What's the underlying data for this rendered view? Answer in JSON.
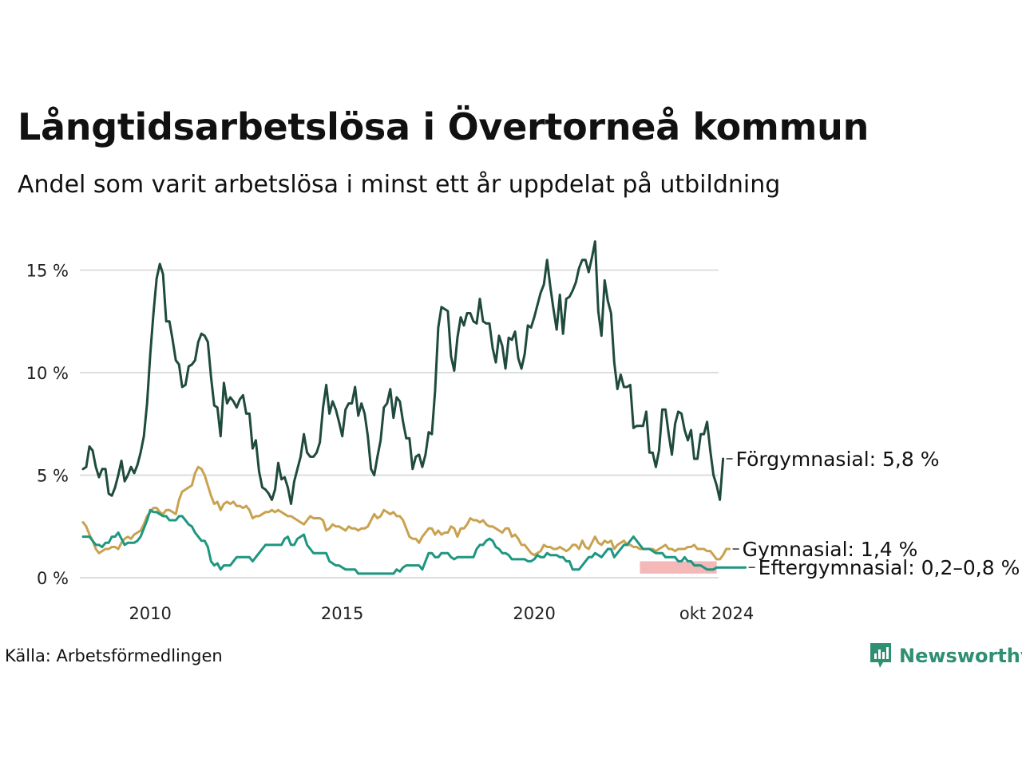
{
  "header": {
    "title": "Långtidsarbetslösa i Övertorneå kommun",
    "subtitle": "Andel som varit arbetslösa i minst ett år uppdelat på utbildning"
  },
  "footer": {
    "source": "Källa: Arbetsförmedlingen",
    "brand": "Newsworthy"
  },
  "colors": {
    "forgymnasial": "#1f4a3e",
    "gymnasial": "#c9a24f",
    "eftergymnasial": "#1e9680",
    "range_band": "#f5b8b8",
    "grid": "#dddddd"
  },
  "chart_data": {
    "type": "line",
    "x_start": 2008.25,
    "x_step": 0.0833333,
    "xlim": [
      2008.25,
      2024.8
    ],
    "ylim": [
      0,
      16.5
    ],
    "y_ticks": [
      {
        "value": 0,
        "label": "0 %"
      },
      {
        "value": 5,
        "label": "5 %"
      },
      {
        "value": 10,
        "label": "10 %"
      },
      {
        "value": 15,
        "label": "15 %"
      }
    ],
    "x_ticks": [
      {
        "value": 2010,
        "label": "2010"
      },
      {
        "value": 2015,
        "label": "2015"
      },
      {
        "value": 2020,
        "label": "2020"
      },
      {
        "value": 2024.75,
        "label": "okt 2024"
      }
    ],
    "series": [
      {
        "key": "forgymnasial",
        "name": "Förgymnasial",
        "end_label": "Förgymnasial: 5,8 %",
        "label_y": 5.8,
        "values": [
          5.3,
          5.4,
          6.4,
          6.2,
          5.4,
          4.9,
          5.3,
          5.3,
          4.1,
          4.0,
          4.4,
          5.0,
          5.7,
          4.7,
          5.0,
          5.4,
          5.1,
          5.5,
          6.1,
          6.9,
          8.5,
          10.9,
          12.9,
          14.6,
          15.3,
          14.8,
          12.5,
          12.5,
          11.6,
          10.6,
          10.4,
          9.3,
          9.4,
          10.3,
          10.4,
          10.6,
          11.5,
          11.9,
          11.8,
          11.5,
          9.8,
          8.4,
          8.3,
          6.9,
          9.5,
          8.5,
          8.8,
          8.6,
          8.3,
          8.7,
          8.9,
          8.0,
          8.0,
          6.3,
          6.7,
          5.2,
          4.4,
          4.3,
          4.1,
          3.8,
          4.3,
          5.6,
          4.8,
          4.9,
          4.4,
          3.6,
          4.7,
          5.3,
          5.9,
          7.0,
          6.1,
          5.9,
          5.9,
          6.1,
          6.6,
          8.3,
          9.4,
          8.0,
          8.6,
          8.2,
          7.6,
          6.9,
          8.2,
          8.5,
          8.5,
          9.3,
          7.9,
          8.5,
          8.0,
          6.9,
          5.3,
          5.0,
          5.9,
          6.7,
          8.3,
          8.5,
          9.2,
          7.8,
          8.8,
          8.6,
          7.6,
          6.8,
          6.8,
          5.3,
          5.9,
          6.0,
          5.4,
          6.0,
          7.1,
          7.0,
          9.1,
          12.2,
          13.2,
          13.1,
          13.0,
          10.8,
          10.1,
          11.7,
          12.7,
          12.3,
          12.9,
          12.9,
          12.5,
          12.4,
          13.6,
          12.5,
          12.4,
          12.4,
          11.2,
          10.5,
          11.8,
          11.3,
          10.2,
          11.7,
          11.6,
          12.0,
          10.7,
          10.2,
          10.9,
          12.3,
          12.2,
          12.7,
          13.3,
          13.9,
          14.3,
          15.5,
          14.2,
          13.1,
          12.1,
          13.8,
          11.9,
          13.6,
          13.7,
          14.0,
          14.4,
          15.1,
          15.5,
          15.5,
          14.9,
          15.6,
          16.4,
          13.0,
          11.8,
          14.5,
          13.5,
          12.9,
          10.5,
          9.2,
          9.9,
          9.3,
          9.3,
          9.4,
          7.3,
          7.4,
          7.4,
          7.4,
          8.1,
          6.1,
          6.1,
          5.4,
          6.2,
          8.2,
          8.2,
          7.0,
          6.0,
          7.5,
          8.1,
          8.0,
          7.2,
          6.7,
          7.2,
          5.8,
          5.8,
          7.0,
          7.0,
          7.6,
          6.2,
          5.0,
          4.5,
          3.8,
          5.8
        ]
      },
      {
        "key": "gymnasial",
        "name": "Gymnasial",
        "end_label": "Gymnasial: 1,4 %",
        "label_y": 1.4,
        "values": [
          2.7,
          2.5,
          2.1,
          1.8,
          1.4,
          1.2,
          1.3,
          1.4,
          1.4,
          1.5,
          1.5,
          1.4,
          1.7,
          1.9,
          2.0,
          1.9,
          2.1,
          2.2,
          2.3,
          2.6,
          3.0,
          3.2,
          3.4,
          3.4,
          3.2,
          3.1,
          3.3,
          3.3,
          3.2,
          3.1,
          3.8,
          4.2,
          4.3,
          4.4,
          4.5,
          5.1,
          5.4,
          5.3,
          5.0,
          4.5,
          4.0,
          3.6,
          3.7,
          3.3,
          3.6,
          3.7,
          3.6,
          3.7,
          3.5,
          3.5,
          3.4,
          3.5,
          3.3,
          2.9,
          3.0,
          3.0,
          3.1,
          3.2,
          3.2,
          3.3,
          3.2,
          3.3,
          3.2,
          3.1,
          3.0,
          3.0,
          2.9,
          2.8,
          2.7,
          2.6,
          2.8,
          3.0,
          2.9,
          2.9,
          2.9,
          2.8,
          2.3,
          2.4,
          2.6,
          2.5,
          2.5,
          2.4,
          2.3,
          2.5,
          2.4,
          2.4,
          2.3,
          2.4,
          2.4,
          2.5,
          2.8,
          3.1,
          2.9,
          3.0,
          3.3,
          3.2,
          3.1,
          3.2,
          3.0,
          3.0,
          2.8,
          2.4,
          2.0,
          1.9,
          1.9,
          1.7,
          2.0,
          2.2,
          2.4,
          2.4,
          2.1,
          2.3,
          2.1,
          2.2,
          2.2,
          2.5,
          2.4,
          2.0,
          2.4,
          2.4,
          2.6,
          2.9,
          2.8,
          2.8,
          2.7,
          2.8,
          2.6,
          2.5,
          2.5,
          2.4,
          2.3,
          2.2,
          2.4,
          2.4,
          2.0,
          2.1,
          1.9,
          1.6,
          1.6,
          1.4,
          1.2,
          1.1,
          1.2,
          1.3,
          1.6,
          1.5,
          1.5,
          1.4,
          1.4,
          1.5,
          1.4,
          1.3,
          1.4,
          1.6,
          1.6,
          1.4,
          1.8,
          1.5,
          1.4,
          1.7,
          2.0,
          1.7,
          1.6,
          1.8,
          1.7,
          1.8,
          1.4,
          1.6,
          1.7,
          1.8,
          1.6,
          1.6,
          1.5,
          1.5,
          1.4,
          1.4,
          1.4,
          1.4,
          1.4,
          1.3,
          1.4,
          1.5,
          1.6,
          1.4,
          1.4,
          1.3,
          1.4,
          1.4,
          1.4,
          1.5,
          1.5,
          1.6,
          1.4,
          1.4,
          1.4,
          1.3,
          1.3,
          1.1,
          0.9,
          0.9,
          1.1,
          1.4,
          1.4
        ]
      },
      {
        "key": "eftergymnasial",
        "name": "Eftergymnasial",
        "end_label": "Eftergymnasial: 0,2–0,8 %",
        "label_y": 0.5,
        "range": [
          0.2,
          0.8
        ],
        "range_x": [
          2022.75,
          2024.75
        ],
        "values": [
          2.0,
          2.0,
          2.0,
          1.8,
          1.6,
          1.6,
          1.5,
          1.7,
          1.7,
          2.0,
          2.0,
          2.2,
          1.9,
          1.6,
          1.7,
          1.7,
          1.7,
          1.8,
          2.0,
          2.4,
          2.8,
          3.3,
          3.2,
          3.2,
          3.1,
          3.0,
          3.0,
          2.8,
          2.8,
          2.8,
          3.0,
          3.0,
          2.8,
          2.6,
          2.5,
          2.2,
          2.0,
          1.8,
          1.8,
          1.5,
          0.8,
          0.6,
          0.7,
          0.4,
          0.6,
          0.6,
          0.6,
          0.8,
          1.0,
          1.0,
          1.0,
          1.0,
          1.0,
          0.8,
          1.0,
          1.2,
          1.4,
          1.6,
          1.6,
          1.6,
          1.6,
          1.6,
          1.6,
          1.9,
          2.0,
          1.6,
          1.6,
          1.9,
          2.0,
          2.1,
          1.6,
          1.4,
          1.2,
          1.2,
          1.2,
          1.2,
          1.2,
          0.8,
          0.7,
          0.6,
          0.6,
          0.5,
          0.4,
          0.4,
          0.4,
          0.4,
          0.2,
          0.2,
          0.2,
          0.2,
          0.2,
          0.2,
          0.2,
          0.2,
          0.2,
          0.2,
          0.2,
          0.2,
          0.4,
          0.3,
          0.5,
          0.6,
          0.6,
          0.6,
          0.6,
          0.6,
          0.4,
          0.8,
          1.2,
          1.2,
          1.0,
          1.0,
          1.2,
          1.2,
          1.2,
          1.0,
          0.9,
          1.0,
          1.0,
          1.0,
          1.0,
          1.0,
          1.0,
          1.4,
          1.6,
          1.6,
          1.8,
          1.9,
          1.8,
          1.5,
          1.4,
          1.2,
          1.2,
          1.1,
          0.9,
          0.9,
          0.9,
          0.9,
          0.9,
          0.8,
          0.8,
          0.9,
          1.1,
          1.0,
          1.0,
          1.2,
          1.1,
          1.1,
          1.1,
          1.0,
          1.0,
          0.8,
          0.8,
          0.4,
          0.4,
          0.4,
          0.6,
          0.8,
          1.0,
          1.0,
          1.2,
          1.1,
          1.0,
          1.2,
          1.4,
          1.4,
          1.0,
          1.2,
          1.4,
          1.6,
          1.6,
          1.8,
          2.0,
          1.8,
          1.6,
          1.4,
          1.4,
          1.4,
          1.3,
          1.2,
          1.2,
          1.2,
          1.0,
          1.0,
          1.0,
          1.0,
          0.8,
          0.8,
          1.0,
          0.8,
          0.8,
          0.6,
          0.6,
          0.6,
          0.5,
          0.4,
          0.4,
          0.4,
          0.5,
          0.5,
          0.5,
          0.5,
          0.5,
          0.5,
          0.5,
          0.5,
          0.5,
          0.5
        ]
      }
    ]
  }
}
